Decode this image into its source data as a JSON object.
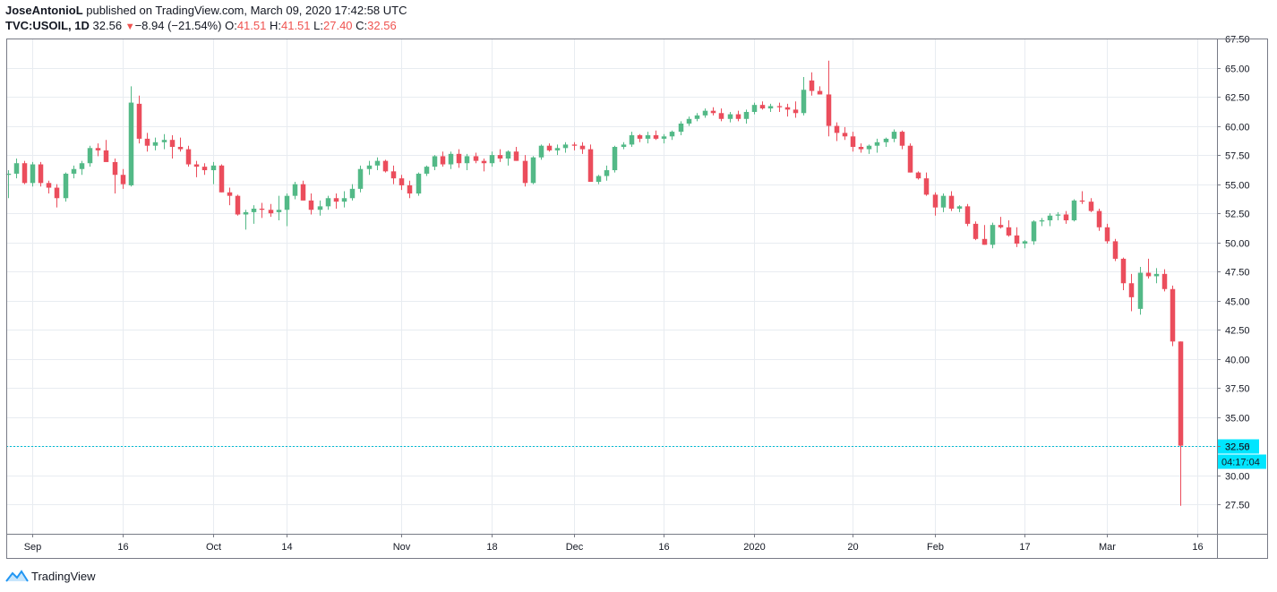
{
  "header": {
    "author": "JoseAntonioL",
    "published_text": " published on TradingView.com, March 09, 2020 17:42:58 UTC",
    "symbol": "TVC:USOIL, 1D",
    "last": "32.56",
    "change_arrow": "▼",
    "change": "−8.94 (−21.54%)",
    "o_label": "O:",
    "o_value": "41.51",
    "h_label": "H:",
    "h_value": "41.51",
    "l_label": "L:",
    "l_value": "27.40",
    "c_label": "C:",
    "c_value": "32.56"
  },
  "footer": {
    "brand": "TradingView"
  },
  "colors": {
    "up": "#53b987",
    "down": "#eb4d5c",
    "grid": "#e8ecf1",
    "axis": "#787b86",
    "price_line": "#00bcd4",
    "price_label_bg": "#00e5ff"
  },
  "chart_data": {
    "type": "candlestick",
    "y_range": [
      25.0,
      67.5
    ],
    "y_ticks": [
      27.5,
      30.0,
      32.5,
      35.0,
      37.5,
      40.0,
      42.5,
      45.0,
      47.5,
      50.0,
      52.5,
      55.0,
      57.5,
      60.0,
      62.5,
      65.0,
      67.5
    ],
    "y_tick_labels": [
      "27.50",
      "30.00",
      "32.50",
      "35.00",
      "37.50",
      "40.00",
      "42.50",
      "45.00",
      "47.50",
      "50.00",
      "52.50",
      "55.00",
      "57.50",
      "60.00",
      "62.50",
      "65.00",
      "67.50"
    ],
    "x_ticks": [
      {
        "label": "Sep",
        "index": 3
      },
      {
        "label": "16",
        "index": 14
      },
      {
        "label": "Oct",
        "index": 25
      },
      {
        "label": "14",
        "index": 34
      },
      {
        "label": "Nov",
        "index": 48
      },
      {
        "label": "18",
        "index": 59
      },
      {
        "label": "Dec",
        "index": 69
      },
      {
        "label": "16",
        "index": 80
      },
      {
        "label": "2020",
        "index": 91
      },
      {
        "label": "20",
        "index": 103
      },
      {
        "label": "Feb",
        "index": 113
      },
      {
        "label": "17",
        "index": 124
      },
      {
        "label": "Mar",
        "index": 134
      },
      {
        "label": "16",
        "index": 145
      }
    ],
    "current_price": "32.56",
    "countdown": "04:17:04",
    "candles": [
      [
        55.8,
        56.2,
        53.8,
        55.9
      ],
      [
        55.9,
        57.2,
        55.5,
        56.8
      ],
      [
        56.8,
        57.0,
        55.0,
        55.1
      ],
      [
        55.1,
        56.9,
        54.8,
        56.7
      ],
      [
        56.7,
        56.9,
        54.8,
        55.1
      ],
      [
        55.1,
        55.3,
        54.2,
        54.7
      ],
      [
        54.7,
        55.0,
        53.0,
        53.8
      ],
      [
        53.8,
        56.0,
        53.5,
        55.9
      ],
      [
        55.9,
        56.6,
        55.5,
        56.3
      ],
      [
        56.3,
        57.0,
        55.8,
        56.8
      ],
      [
        56.8,
        58.3,
        56.5,
        58.1
      ],
      [
        58.1,
        58.5,
        57.4,
        57.9
      ],
      [
        57.9,
        58.8,
        56.9,
        56.9
      ],
      [
        56.9,
        57.2,
        54.2,
        55.8
      ],
      [
        55.8,
        56.3,
        54.6,
        55.0
      ],
      [
        54.9,
        63.4,
        54.8,
        62.0
      ],
      [
        61.9,
        62.6,
        58.5,
        58.9
      ],
      [
        58.9,
        59.4,
        57.8,
        58.3
      ],
      [
        58.3,
        59.0,
        57.9,
        58.6
      ],
      [
        58.6,
        59.3,
        58.0,
        58.8
      ],
      [
        58.8,
        59.2,
        57.2,
        58.2
      ],
      [
        58.2,
        59.0,
        57.8,
        58.0
      ],
      [
        58.0,
        58.3,
        56.5,
        56.7
      ],
      [
        56.7,
        57.0,
        55.6,
        56.5
      ],
      [
        56.5,
        56.8,
        55.8,
        56.2
      ],
      [
        56.2,
        56.9,
        55.0,
        56.6
      ],
      [
        56.6,
        56.7,
        54.3,
        54.3
      ],
      [
        54.3,
        54.7,
        53.2,
        54.0
      ],
      [
        54.0,
        54.1,
        52.3,
        52.4
      ],
      [
        52.4,
        52.8,
        51.1,
        52.6
      ],
      [
        52.6,
        53.2,
        51.6,
        52.9
      ],
      [
        52.9,
        53.4,
        52.1,
        52.8
      ],
      [
        52.8,
        53.3,
        52.2,
        52.5
      ],
      [
        52.6,
        54.0,
        51.9,
        52.8
      ],
      [
        52.8,
        54.2,
        51.4,
        54.0
      ],
      [
        54.0,
        55.2,
        53.7,
        55.0
      ],
      [
        55.0,
        55.3,
        53.6,
        53.6
      ],
      [
        53.6,
        54.2,
        52.4,
        52.8
      ],
      [
        52.8,
        53.6,
        52.3,
        53.1
      ],
      [
        53.1,
        54.0,
        52.8,
        53.8
      ],
      [
        53.8,
        54.2,
        52.9,
        53.5
      ],
      [
        53.5,
        54.4,
        53.0,
        53.8
      ],
      [
        53.8,
        55.0,
        53.6,
        54.6
      ],
      [
        54.6,
        56.6,
        54.3,
        56.3
      ],
      [
        56.3,
        57.0,
        55.8,
        56.6
      ],
      [
        56.6,
        57.3,
        56.2,
        57.0
      ],
      [
        57.0,
        57.1,
        56.0,
        56.1
      ],
      [
        56.1,
        56.6,
        55.0,
        55.5
      ],
      [
        55.5,
        55.8,
        54.5,
        54.9
      ],
      [
        54.9,
        55.3,
        53.8,
        54.2
      ],
      [
        54.2,
        56.0,
        54.0,
        55.9
      ],
      [
        55.9,
        56.6,
        55.7,
        56.5
      ],
      [
        56.5,
        57.5,
        56.2,
        57.4
      ],
      [
        57.4,
        57.8,
        56.5,
        56.7
      ],
      [
        56.7,
        57.8,
        56.3,
        57.6
      ],
      [
        57.6,
        58.0,
        56.4,
        56.8
      ],
      [
        56.8,
        57.6,
        56.2,
        57.4
      ],
      [
        57.4,
        57.7,
        56.8,
        57.0
      ],
      [
        57.0,
        57.2,
        56.1,
        56.8
      ],
      [
        56.8,
        57.8,
        56.5,
        57.5
      ],
      [
        57.5,
        58.0,
        56.9,
        57.2
      ],
      [
        57.2,
        57.9,
        56.6,
        57.8
      ],
      [
        57.8,
        58.2,
        57.0,
        57.0
      ],
      [
        57.0,
        57.5,
        54.8,
        55.1
      ],
      [
        55.1,
        57.4,
        55.0,
        57.3
      ],
      [
        57.3,
        58.4,
        57.1,
        58.3
      ],
      [
        58.3,
        58.5,
        57.8,
        57.9
      ],
      [
        57.9,
        58.4,
        57.5,
        58.1
      ],
      [
        58.1,
        58.6,
        57.7,
        58.4
      ],
      [
        58.4,
        58.6,
        57.9,
        58.3
      ],
      [
        58.3,
        58.6,
        57.6,
        58.0
      ],
      [
        58.0,
        58.4,
        55.2,
        55.2
      ],
      [
        55.2,
        55.8,
        55.0,
        55.7
      ],
      [
        55.7,
        56.6,
        55.3,
        56.2
      ],
      [
        56.2,
        58.3,
        56.0,
        58.2
      ],
      [
        58.2,
        58.6,
        58.0,
        58.4
      ],
      [
        58.4,
        59.5,
        58.2,
        59.2
      ],
      [
        59.2,
        59.3,
        58.6,
        58.9
      ],
      [
        58.9,
        59.5,
        58.5,
        59.2
      ],
      [
        59.2,
        59.6,
        58.8,
        58.9
      ],
      [
        58.9,
        59.3,
        58.5,
        59.1
      ],
      [
        59.1,
        59.6,
        58.8,
        59.5
      ],
      [
        59.5,
        60.4,
        59.2,
        60.2
      ],
      [
        60.2,
        60.8,
        60.0,
        60.6
      ],
      [
        60.6,
        61.1,
        60.4,
        60.9
      ],
      [
        60.9,
        61.5,
        60.7,
        61.3
      ],
      [
        61.3,
        61.6,
        60.9,
        61.1
      ],
      [
        61.1,
        61.5,
        60.4,
        60.6
      ],
      [
        60.6,
        61.2,
        60.3,
        61.0
      ],
      [
        61.0,
        61.3,
        60.4,
        60.6
      ],
      [
        60.6,
        61.4,
        60.2,
        61.2
      ],
      [
        61.2,
        62.0,
        61.0,
        61.8
      ],
      [
        61.8,
        62.1,
        61.4,
        61.5
      ],
      [
        61.5,
        61.9,
        61.2,
        61.7
      ],
      [
        61.7,
        62.0,
        61.2,
        61.6
      ],
      [
        61.6,
        61.9,
        60.8,
        61.4
      ],
      [
        61.4,
        62.1,
        60.7,
        61.1
      ],
      [
        61.1,
        64.2,
        60.9,
        63.1
      ],
      [
        63.9,
        64.6,
        62.6,
        63.0
      ],
      [
        63.0,
        63.4,
        62.7,
        62.7
      ],
      [
        62.7,
        65.6,
        59.1,
        60.0
      ],
      [
        60.0,
        60.3,
        58.7,
        59.4
      ],
      [
        59.4,
        59.9,
        58.8,
        59.1
      ],
      [
        59.1,
        59.5,
        57.8,
        58.2
      ],
      [
        58.2,
        58.5,
        57.7,
        58.0
      ],
      [
        58.0,
        58.4,
        57.6,
        58.3
      ],
      [
        58.3,
        58.9,
        57.7,
        58.6
      ],
      [
        58.6,
        59.0,
        58.2,
        58.9
      ],
      [
        58.9,
        59.7,
        58.6,
        59.5
      ],
      [
        59.5,
        59.6,
        58.0,
        58.3
      ],
      [
        58.3,
        58.5,
        56.0,
        56.0
      ],
      [
        56.0,
        56.1,
        55.4,
        55.5
      ],
      [
        55.5,
        56.0,
        54.0,
        54.1
      ],
      [
        54.1,
        54.3,
        52.3,
        53.0
      ],
      [
        53.0,
        54.2,
        52.6,
        54.0
      ],
      [
        54.0,
        54.4,
        52.7,
        52.9
      ],
      [
        52.9,
        53.2,
        52.6,
        53.1
      ],
      [
        53.1,
        53.3,
        51.4,
        51.6
      ],
      [
        51.6,
        51.8,
        50.2,
        50.3
      ],
      [
        50.3,
        51.5,
        49.8,
        49.8
      ],
      [
        49.8,
        51.7,
        49.5,
        51.5
      ],
      [
        51.5,
        52.2,
        51.2,
        51.3
      ],
      [
        51.3,
        51.9,
        50.5,
        50.6
      ],
      [
        50.6,
        51.3,
        49.6,
        49.9
      ],
      [
        49.9,
        50.2,
        49.5,
        50.1
      ],
      [
        50.1,
        51.9,
        49.8,
        51.8
      ],
      [
        51.8,
        52.1,
        51.4,
        51.9
      ],
      [
        51.9,
        52.5,
        51.4,
        52.3
      ],
      [
        52.3,
        52.6,
        51.9,
        52.4
      ],
      [
        52.4,
        52.7,
        51.6,
        51.9
      ],
      [
        51.9,
        53.7,
        51.8,
        53.6
      ],
      [
        53.6,
        54.4,
        53.3,
        53.5
      ],
      [
        53.5,
        53.8,
        52.6,
        52.7
      ],
      [
        52.7,
        52.9,
        51.0,
        51.3
      ],
      [
        51.3,
        51.6,
        49.9,
        50.1
      ],
      [
        50.1,
        50.3,
        48.4,
        48.6
      ],
      [
        48.6,
        48.7,
        45.9,
        46.5
      ],
      [
        46.5,
        47.3,
        44.1,
        45.3
      ],
      [
        44.3,
        47.9,
        43.8,
        47.4
      ],
      [
        47.4,
        48.6,
        46.9,
        47.1
      ],
      [
        47.1,
        47.8,
        46.5,
        47.3
      ],
      [
        47.3,
        47.7,
        45.8,
        46.0
      ],
      [
        46.0,
        46.3,
        41.1,
        41.5
      ],
      [
        41.5,
        41.5,
        27.4,
        32.56
      ]
    ]
  }
}
